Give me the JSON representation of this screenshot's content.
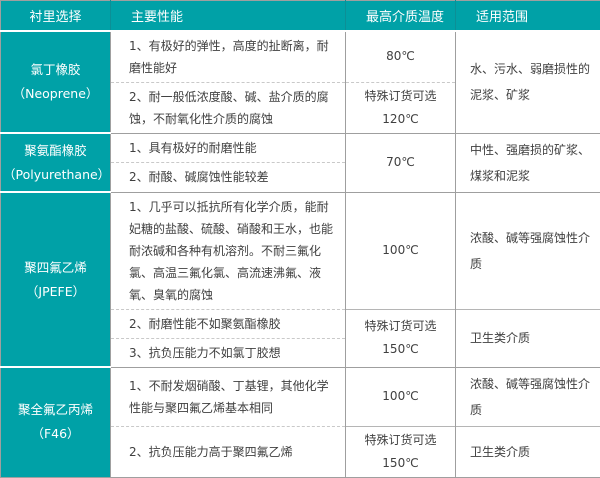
{
  "colors": {
    "accent_teal": "#00a1a7",
    "border_gray": "#9f9f9f"
  },
  "table": {
    "headers": [
      "衬里选择",
      "主要性能",
      "最高介质温度",
      "适用范围"
    ],
    "sections": [
      {
        "name": "氯丁橡胶",
        "alias": "（Neoprene）",
        "rows": [
          {
            "perf": "1、有极好的弹性，高度的扯断离，耐磨性能好",
            "temp": [
              "80℃"
            ]
          },
          {
            "perf": "2、耐一般低浓度酸、碱、盐介质的腐蚀，不耐氧化性介质的腐蚀",
            "temp": [
              "特殊订货可选",
              "120℃"
            ]
          }
        ],
        "range": "水、污水、弱磨损性的泥浆、矿浆"
      },
      {
        "name": "聚氨酯橡胶",
        "alias": "（Polyurethane）",
        "rows": [
          {
            "perf": "1、具有极好的耐磨性能"
          },
          {
            "perf": "2、耐酸、碱腐蚀性能较差"
          }
        ],
        "temp": [
          "70℃"
        ],
        "range": "中性、强磨损的矿浆、煤浆和泥浆"
      },
      {
        "name": "聚四氟乙烯",
        "alias": "（JPEFE）",
        "rows": [
          {
            "perf": "1、几乎可以抵抗所有化学介质，能耐妃糖的盐酸、硫酸、硝酸和王水，也能耐浓碱和各种有机溶剂。不耐三氟化氯、高温三氟化氯、高流速沸氟、液氧、臭氧的腐蚀",
            "temp": [
              "100℃"
            ],
            "range": "浓酸、碱等强腐蚀性介质"
          },
          {
            "perf": "2、耐磨性能不如聚氨酯橡胶",
            "temp": [
              "特殊订货可选",
              "150℃"
            ],
            "range": "卫生类介质"
          },
          {
            "perf": "3、抗负压能力不如氯丁胶想"
          }
        ]
      },
      {
        "name": "聚全氟乙丙烯",
        "alias": "（F46）",
        "rows": [
          {
            "perf": "1、不耐发烟硝酸、丁基锂，其他化学性能与聚四氟乙烯基本相同",
            "temp": [
              "100℃"
            ],
            "range": "浓酸、碱等强腐蚀性介质"
          },
          {
            "perf": "2、抗负压能力高于聚四氟乙烯",
            "temp": [
              "特殊订货可选",
              "150℃"
            ],
            "range": "卫生类介质"
          }
        ]
      }
    ]
  }
}
